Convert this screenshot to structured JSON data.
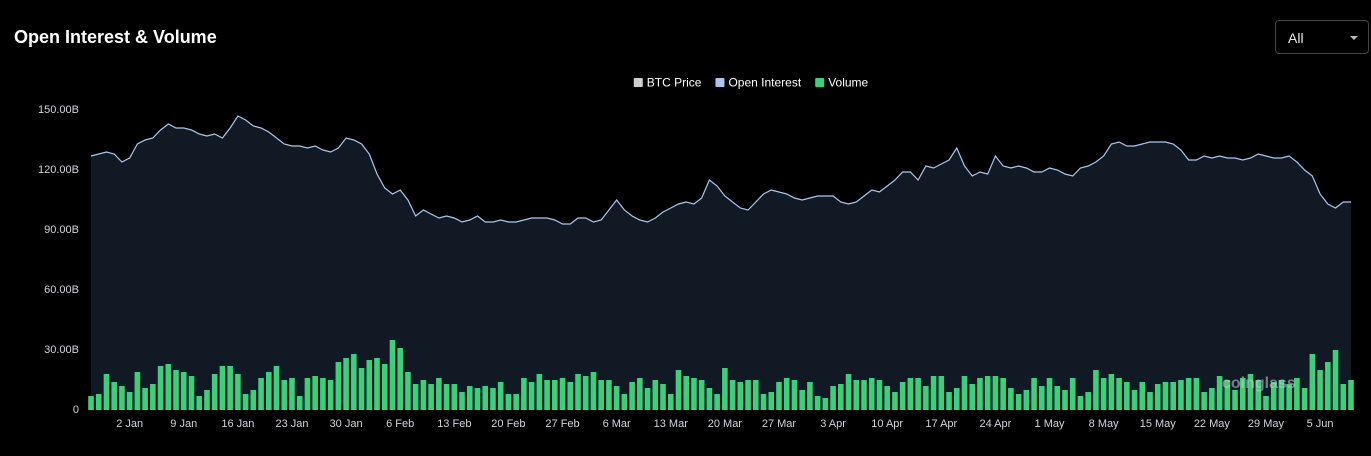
{
  "controls": {
    "range": "All"
  },
  "chart_data": {
    "type": "bar-line",
    "title": "Open Interest & Volume",
    "watermark": "coinglass",
    "legend_extra": [
      {
        "name": "BTC Price",
        "color": "#cfcfcf"
      }
    ],
    "categories": [
      null,
      null,
      null,
      null,
      null,
      "2 Jan",
      null,
      null,
      null,
      null,
      null,
      null,
      "9 Jan",
      null,
      null,
      null,
      null,
      null,
      null,
      "16 Jan",
      null,
      null,
      null,
      null,
      null,
      null,
      "23 Jan",
      null,
      null,
      null,
      null,
      null,
      null,
      "30 Jan",
      null,
      null,
      null,
      null,
      null,
      null,
      "6 Feb",
      null,
      null,
      null,
      null,
      null,
      null,
      "13 Feb",
      null,
      null,
      null,
      null,
      null,
      null,
      "20 Feb",
      null,
      null,
      null,
      null,
      null,
      null,
      "27 Feb",
      null,
      null,
      null,
      null,
      null,
      null,
      "6 Mar",
      null,
      null,
      null,
      null,
      null,
      null,
      "13 Mar",
      null,
      null,
      null,
      null,
      null,
      null,
      "20 Mar",
      null,
      null,
      null,
      null,
      null,
      null,
      "27 Mar",
      null,
      null,
      null,
      null,
      null,
      null,
      "3 Apr",
      null,
      null,
      null,
      null,
      null,
      null,
      "10 Apr",
      null,
      null,
      null,
      null,
      null,
      null,
      "17 Apr",
      null,
      null,
      null,
      null,
      null,
      null,
      "24 Apr",
      null,
      null,
      null,
      null,
      null,
      null,
      "1 May",
      null,
      null,
      null,
      null,
      null,
      null,
      "8 May",
      null,
      null,
      null,
      null,
      null,
      null,
      "15 May",
      null,
      null,
      null,
      null,
      null,
      null,
      "22 May",
      null,
      null,
      null,
      null,
      null,
      null,
      "29 May",
      null,
      null,
      null,
      null,
      null,
      null,
      "5 Jun",
      null,
      null,
      null,
      null
    ],
    "series": [
      {
        "name": "Open Interest",
        "color": "#a9c6ef",
        "kind": "line",
        "values": [
          127,
          128,
          129,
          128,
          124,
          126,
          133,
          135,
          136,
          140,
          143,
          141,
          141,
          140,
          138,
          137,
          138,
          136,
          141,
          147,
          145,
          142,
          141,
          139,
          136,
          133,
          132,
          132,
          131,
          132,
          130,
          129,
          131,
          136,
          135,
          133,
          128,
          118,
          111,
          108,
          110,
          105,
          97,
          100,
          98,
          96,
          97,
          96,
          94,
          95,
          97,
          94,
          94,
          95,
          94,
          94,
          95,
          96,
          96,
          96,
          95,
          93,
          93,
          96,
          96,
          94,
          95,
          100,
          105,
          100,
          97,
          95,
          94,
          96,
          99,
          101,
          103,
          104,
          103,
          106,
          115,
          112,
          107,
          104,
          101,
          100,
          104,
          108,
          110,
          109,
          108,
          106,
          105,
          106,
          107,
          107,
          107,
          104,
          103,
          104,
          107,
          110,
          109,
          112,
          115,
          119,
          119,
          115,
          122,
          121,
          123,
          125,
          131,
          122,
          117,
          119,
          118,
          127,
          122,
          121,
          122,
          121,
          119,
          119,
          121,
          120,
          118,
          117,
          121,
          122,
          124,
          127,
          133,
          134,
          132,
          132,
          133,
          134,
          134,
          134,
          133,
          130,
          125,
          125,
          127,
          126,
          127,
          126,
          126,
          125,
          126,
          128,
          127,
          126,
          126,
          127,
          124,
          120,
          117,
          108,
          103,
          101,
          104,
          104
        ]
      },
      {
        "name": "Volume",
        "color": "#3fcf7a",
        "kind": "bar",
        "values": [
          7,
          8,
          18,
          14,
          12,
          9,
          19,
          11,
          13,
          22,
          23,
          20,
          19,
          17,
          7,
          10,
          18,
          22,
          22,
          18,
          8,
          10,
          16,
          19,
          22,
          15,
          16,
          7,
          16,
          17,
          16,
          15,
          24,
          26,
          28,
          21,
          25,
          26,
          23,
          35,
          31,
          19,
          13,
          15,
          13,
          16,
          13,
          13,
          9,
          12,
          11,
          12,
          11,
          14,
          8,
          8,
          16,
          14,
          18,
          15,
          15,
          16,
          14,
          18,
          17,
          19,
          15,
          15,
          12,
          8,
          14,
          16,
          11,
          15,
          13,
          8,
          20,
          17,
          16,
          15,
          11,
          8,
          21,
          15,
          14,
          15,
          15,
          8,
          9,
          14,
          16,
          15,
          10,
          14,
          7,
          6,
          12,
          13,
          18,
          15,
          15,
          16,
          15,
          12,
          9,
          14,
          16,
          16,
          12,
          17,
          17,
          9,
          11,
          17,
          13,
          16,
          17,
          17,
          16,
          11,
          8,
          10,
          16,
          12,
          16,
          12,
          10,
          16,
          7,
          9,
          20,
          16,
          18,
          16,
          14,
          10,
          14,
          9,
          13,
          14,
          14,
          15,
          16,
          16,
          9,
          11,
          17,
          15,
          10,
          16,
          18,
          15,
          7,
          14,
          15,
          13,
          16,
          11,
          28,
          20,
          24,
          30,
          13,
          15
        ]
      }
    ],
    "ylim": [
      0,
      150
    ],
    "yticks": [
      0,
      {
        "value": 30,
        "label": "30.00B"
      },
      {
        "value": 60,
        "label": "60.00B"
      },
      {
        "value": 90,
        "label": "90.00B"
      },
      {
        "value": 120,
        "label": "120.00B"
      },
      {
        "value": 150,
        "label": "150.00B"
      }
    ],
    "grid": false
  }
}
